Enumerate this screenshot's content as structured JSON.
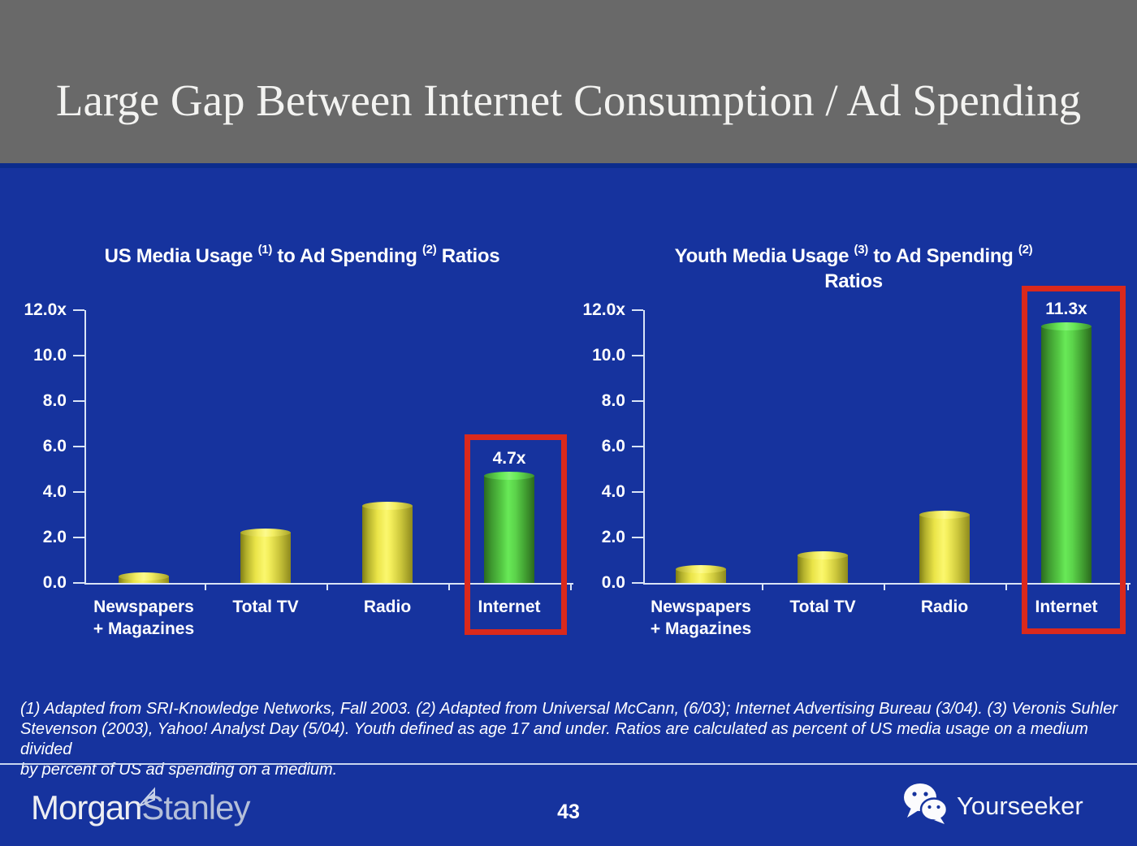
{
  "slide": {
    "title": "Large Gap Between Internet Consumption / Ad Spending",
    "footnote": "(1) Adapted from SRI-Knowledge Networks, Fall 2003.  (2) Adapted from Universal McCann, (6/03); Internet Advertising Bureau (3/04). (3) Veronis Suhler\nStevenson (2003), Yahoo! Analyst Day (5/04).  Youth defined as age 17 and under.  Ratios are calculated as percent of US media usage on a medium divided\nby percent of US ad spending on a medium.",
    "page_number": "43"
  },
  "footer": {
    "brand_primary": "Morgan",
    "brand_secondary": "Stanley",
    "watermark": "Yourseeker",
    "watermark_icon": "wechat-icon"
  },
  "colors": {
    "header_gray": "#696969",
    "body_blue": "#16339e",
    "divider_navy": "#0c2c8c",
    "axis_light": "#d9e4f6",
    "bar_yellow": "#f4ef5c",
    "bar_green": "#5cd44b",
    "highlight_red": "#da291c",
    "text_white": "#ffffff"
  },
  "chart_data": [
    {
      "type": "bar",
      "title": "US Media Usage (1) to Ad Spending (2) Ratios",
      "title_segments": [
        {
          "text": "US Media Usage "
        },
        {
          "text": "(1)",
          "sup": true
        },
        {
          "text": " to Ad Spending "
        },
        {
          "text": "(2)",
          "sup": true
        },
        {
          "text": " Ratios"
        }
      ],
      "categories": [
        "Newspapers\n+ Magazines",
        "Total TV",
        "Radio",
        "Internet"
      ],
      "values": [
        0.3,
        2.2,
        3.4,
        4.7
      ],
      "bar_labels": [
        "",
        "",
        "",
        "4.7x"
      ],
      "bar_colors": [
        "yellow",
        "yellow",
        "yellow",
        "green"
      ],
      "highlight_index": 3,
      "ytick_labels": [
        "12.0x",
        "10.0",
        "8.0",
        "6.0",
        "4.0",
        "2.0",
        "0.0"
      ],
      "ytick_values": [
        12,
        10,
        8,
        6,
        4,
        2,
        0
      ],
      "ylim": [
        0,
        12
      ],
      "grid": false,
      "legend": null,
      "xlabel": "",
      "ylabel": ""
    },
    {
      "type": "bar",
      "title": "Youth Media Usage (3) to Ad Spending (2) Ratios",
      "title_segments": [
        {
          "text": "Youth Media Usage "
        },
        {
          "text": "(3)",
          "sup": true
        },
        {
          "text": " to Ad Spending "
        },
        {
          "text": "(2)",
          "sup": true
        },
        {
          "break": true
        },
        {
          "text": "Ratios"
        }
      ],
      "categories": [
        "Newspapers\n+ Magazines",
        "Total TV",
        "Radio",
        "Internet"
      ],
      "values": [
        0.6,
        1.2,
        3.0,
        11.3
      ],
      "bar_labels": [
        "",
        "",
        "",
        "11.3x"
      ],
      "bar_colors": [
        "yellow",
        "yellow",
        "yellow",
        "green"
      ],
      "highlight_index": 3,
      "ytick_labels": [
        "12.0x",
        "10.0",
        "8.0",
        "6.0",
        "4.0",
        "2.0",
        "0.0"
      ],
      "ytick_values": [
        12,
        10,
        8,
        6,
        4,
        2,
        0
      ],
      "ylim": [
        0,
        12
      ],
      "grid": false,
      "legend": null,
      "xlabel": "",
      "ylabel": ""
    }
  ]
}
